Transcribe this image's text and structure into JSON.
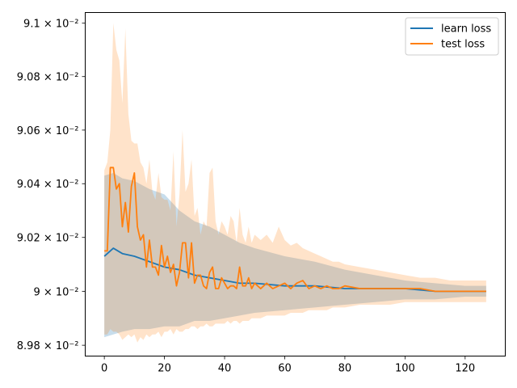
{
  "chart_data": {
    "type": "line",
    "title": "",
    "xlabel": "",
    "ylabel": "",
    "xlim": [
      -6.35,
      133.35
    ],
    "ylim": [
      0.08976,
      0.09104
    ],
    "y_scale": "log",
    "grid": false,
    "legend_position": "top-right",
    "x_ticks": [
      0,
      20,
      40,
      60,
      80,
      100,
      120
    ],
    "y_ticks": [
      {
        "value": 0.0898,
        "label": "8.98 × 10⁻²"
      },
      {
        "value": 0.09,
        "label": "9 × 10⁻²"
      },
      {
        "value": 0.0902,
        "label": "9.02 × 10⁻²"
      },
      {
        "value": 0.0904,
        "label": "9.04 × 10⁻²"
      },
      {
        "value": 0.0906,
        "label": "9.06 × 10⁻²"
      },
      {
        "value": 0.0908,
        "label": "9.08 × 10⁻²"
      },
      {
        "value": 0.091,
        "label": "9.1 × 10⁻²"
      }
    ],
    "series": [
      {
        "name": "learn loss",
        "color": "#1f77b4",
        "x": [
          0,
          3,
          6,
          10,
          15,
          20,
          25,
          30,
          35,
          40,
          45,
          50,
          60,
          70,
          80,
          90,
          100,
          110,
          120,
          127
        ],
        "values": [
          0.09013,
          0.09016,
          0.09014,
          0.09013,
          0.09011,
          0.09009,
          0.09008,
          0.09006,
          0.09005,
          0.09004,
          0.09003,
          0.09003,
          0.09002,
          0.09002,
          0.09001,
          0.09001,
          0.09001,
          0.09,
          0.09,
          0.09
        ],
        "band_upper": [
          0.09043,
          0.09044,
          0.09042,
          0.09041,
          0.09038,
          0.09036,
          0.0903,
          0.09026,
          0.09024,
          0.09021,
          0.09018,
          0.09016,
          0.09013,
          0.09011,
          0.09008,
          0.09006,
          0.09004,
          0.09003,
          0.09002,
          0.09002
        ],
        "band_lower": [
          0.08983,
          0.08984,
          0.08985,
          0.08986,
          0.08986,
          0.08987,
          0.08987,
          0.08989,
          0.08989,
          0.0899,
          0.08991,
          0.08992,
          0.08993,
          0.08994,
          0.08995,
          0.08996,
          0.08997,
          0.08997,
          0.08998,
          0.08998
        ]
      },
      {
        "name": "test loss",
        "color": "#ff7f0e",
        "x": [
          0,
          1,
          2,
          3,
          4,
          5,
          6,
          7,
          8,
          9,
          10,
          11,
          12,
          13,
          14,
          15,
          16,
          17,
          18,
          19,
          20,
          21,
          22,
          23,
          24,
          25,
          26,
          27,
          28,
          29,
          30,
          31,
          32,
          33,
          34,
          35,
          36,
          37,
          38,
          39,
          40,
          41,
          42,
          43,
          44,
          45,
          46,
          47,
          48,
          49,
          50,
          52,
          54,
          56,
          58,
          60,
          62,
          64,
          66,
          68,
          70,
          72,
          74,
          76,
          78,
          80,
          85,
          90,
          95,
          100,
          105,
          110,
          115,
          120,
          127
        ],
        "values": [
          0.09015,
          0.09015,
          0.09046,
          0.09046,
          0.09038,
          0.0904,
          0.09024,
          0.09033,
          0.09022,
          0.09039,
          0.09044,
          0.09024,
          0.09019,
          0.09021,
          0.09009,
          0.09019,
          0.09009,
          0.09009,
          0.09006,
          0.09017,
          0.09009,
          0.09013,
          0.09007,
          0.0901,
          0.09002,
          0.09007,
          0.09018,
          0.09018,
          0.09005,
          0.09018,
          0.09003,
          0.09006,
          0.09006,
          0.09002,
          0.09001,
          0.09007,
          0.09009,
          0.09001,
          0.09001,
          0.09005,
          0.09003,
          0.09001,
          0.09002,
          0.09002,
          0.09001,
          0.09009,
          0.09002,
          0.09002,
          0.09005,
          0.09001,
          0.09003,
          0.09001,
          0.09003,
          0.09001,
          0.09002,
          0.09003,
          0.09001,
          0.09003,
          0.09004,
          0.09001,
          0.09002,
          0.09001,
          0.09002,
          0.09001,
          0.09001,
          0.09002,
          0.09001,
          0.09001,
          0.09001,
          0.09001,
          0.09001,
          0.09,
          0.09,
          0.09,
          0.09
        ],
        "band_upper": [
          0.09045,
          0.09048,
          0.0906,
          0.091,
          0.0909,
          0.09086,
          0.0907,
          0.09098,
          0.09066,
          0.09056,
          0.09055,
          0.09055,
          0.09048,
          0.09046,
          0.0904,
          0.09049,
          0.09037,
          0.09034,
          0.09044,
          0.09035,
          0.09034,
          0.09034,
          0.0903,
          0.09052,
          0.09024,
          0.09036,
          0.0906,
          0.09037,
          0.0904,
          0.09049,
          0.09028,
          0.09031,
          0.09021,
          0.09026,
          0.09024,
          0.09044,
          0.09046,
          0.09026,
          0.09021,
          0.09026,
          0.09024,
          0.09021,
          0.09028,
          0.09026,
          0.09018,
          0.09031,
          0.09021,
          0.09018,
          0.09024,
          0.09018,
          0.09021,
          0.09019,
          0.09021,
          0.09018,
          0.09024,
          0.09019,
          0.09017,
          0.09018,
          0.09016,
          0.09015,
          0.09014,
          0.09013,
          0.09012,
          0.09011,
          0.09011,
          0.0901,
          0.09009,
          0.09008,
          0.09007,
          0.09006,
          0.09005,
          0.09005,
          0.09004,
          0.09004,
          0.09004
        ],
        "band_lower": [
          0.08984,
          0.08984,
          0.08986,
          0.08985,
          0.08985,
          0.08984,
          0.08982,
          0.08983,
          0.08984,
          0.08983,
          0.08984,
          0.08981,
          0.08983,
          0.08982,
          0.08984,
          0.08983,
          0.08984,
          0.08984,
          0.08985,
          0.08983,
          0.08985,
          0.08985,
          0.08986,
          0.08984,
          0.08986,
          0.08985,
          0.08985,
          0.08986,
          0.08986,
          0.08987,
          0.08987,
          0.08986,
          0.08987,
          0.08987,
          0.08988,
          0.08987,
          0.08987,
          0.08988,
          0.08988,
          0.08988,
          0.08988,
          0.08989,
          0.08988,
          0.08989,
          0.08989,
          0.08988,
          0.08989,
          0.08989,
          0.08989,
          0.0899,
          0.0899,
          0.0899,
          0.08991,
          0.08991,
          0.08991,
          0.08991,
          0.08992,
          0.08992,
          0.08992,
          0.08993,
          0.08993,
          0.08993,
          0.08993,
          0.08994,
          0.08994,
          0.08994,
          0.08995,
          0.08995,
          0.08995,
          0.08996,
          0.08996,
          0.08996,
          0.08996,
          0.08996,
          0.08996
        ]
      }
    ]
  }
}
